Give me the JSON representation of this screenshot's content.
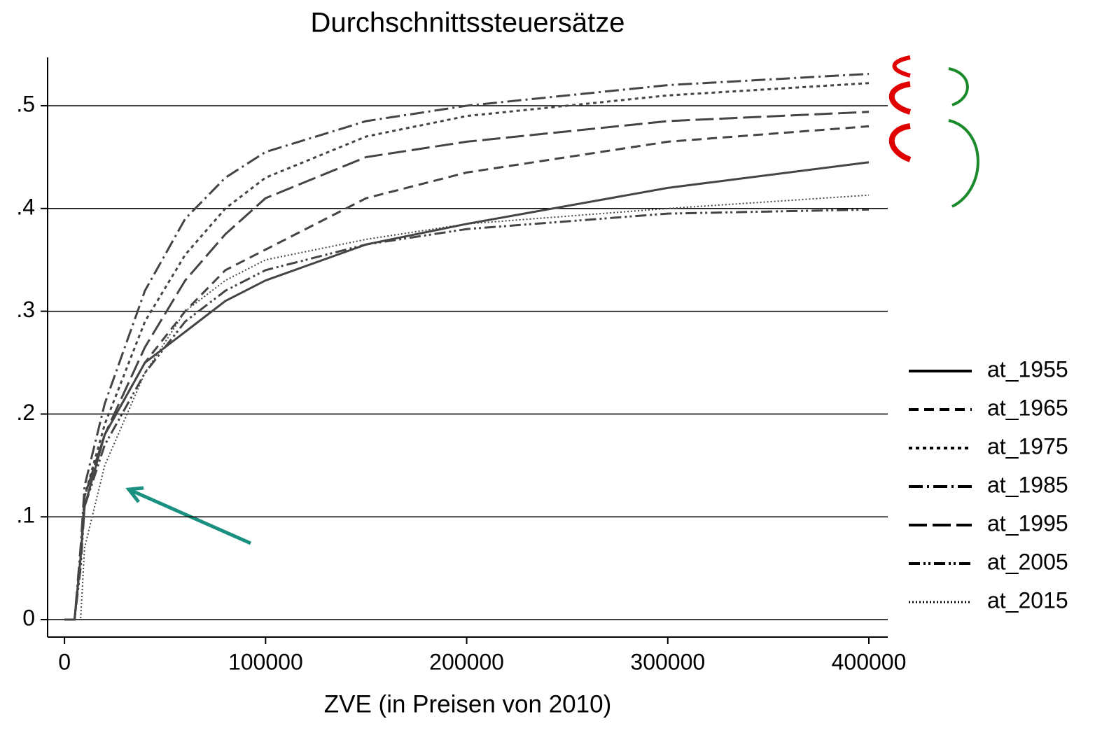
{
  "chart_data": {
    "type": "line",
    "title": "Durchschnittssteuersätze",
    "x_label": "ZVE (in Preisen von 2010)",
    "x": [
      0,
      5000,
      8000,
      10000,
      20000,
      40000,
      60000,
      80000,
      100000,
      150000,
      200000,
      300000,
      400000
    ],
    "series": [
      {
        "name": "at_1955",
        "color": "#444444",
        "values": [
          0,
          0,
          0.06,
          0.11,
          0.18,
          0.25,
          0.28,
          0.31,
          0.33,
          0.365,
          0.385,
          0.42,
          0.445
        ]
      },
      {
        "name": "at_1965",
        "color": "#444444",
        "values": [
          0,
          0,
          0.06,
          0.12,
          0.18,
          0.25,
          0.3,
          0.34,
          0.36,
          0.41,
          0.435,
          0.465,
          0.48
        ]
      },
      {
        "name": "at_1975",
        "color": "#444444",
        "values": [
          0,
          0,
          0.06,
          0.12,
          0.19,
          0.29,
          0.355,
          0.4,
          0.43,
          0.47,
          0.49,
          0.51,
          0.522
        ]
      },
      {
        "name": "at_1985",
        "color": "#444444",
        "values": [
          0,
          0,
          0.07,
          0.13,
          0.21,
          0.32,
          0.39,
          0.43,
          0.455,
          0.485,
          0.5,
          0.52,
          0.531
        ]
      },
      {
        "name": "at_1995",
        "color": "#444444",
        "values": [
          0,
          0,
          0.06,
          0.12,
          0.18,
          0.265,
          0.33,
          0.375,
          0.41,
          0.45,
          0.465,
          0.485,
          0.494
        ]
      },
      {
        "name": "at_2005",
        "color": "#444444",
        "values": [
          0,
          0,
          0.05,
          0.11,
          0.17,
          0.24,
          0.29,
          0.32,
          0.34,
          0.365,
          0.38,
          0.395,
          0.399
        ]
      },
      {
        "name": "at_2015",
        "color": "#444444",
        "values": [
          0,
          0,
          0,
          0.07,
          0.15,
          0.24,
          0.3,
          0.33,
          0.35,
          0.37,
          0.385,
          0.4,
          0.413
        ]
      }
    ],
    "xlim": [
      -8400,
      409400
    ],
    "ylim": [
      -0.017,
      0.547
    ],
    "xticks": [
      0,
      100000,
      200000,
      300000,
      400000
    ],
    "yticks": [
      0,
      {
        "value": 0.1,
        "label": ".1"
      },
      {
        "value": 0.2,
        "label": ".2"
      },
      {
        "value": 0.3,
        "label": ".3"
      },
      {
        "value": 0.4,
        "label": ".4"
      },
      {
        "value": 0.5,
        "label": ".5"
      }
    ],
    "grid": true,
    "legend": "right"
  }
}
